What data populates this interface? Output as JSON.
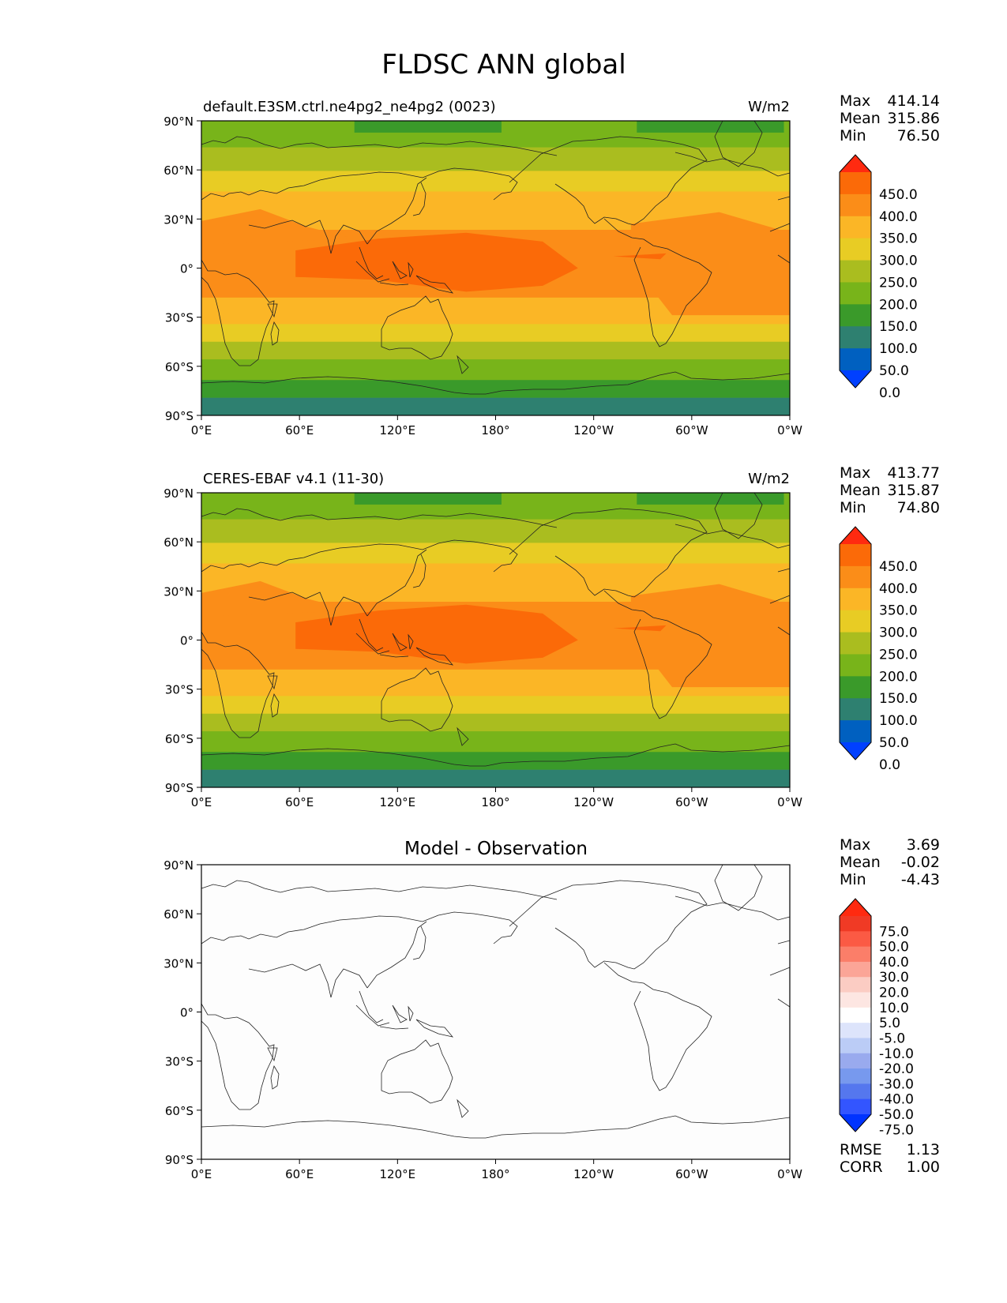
{
  "title": "FLDSC ANN global",
  "panels": [
    {
      "id": "model",
      "left_title": "default.E3SM.ctrl.ne4pg2_ne4pg2 (0023)",
      "center_title": "",
      "right_title": "W/m2",
      "stats": [
        {
          "label": "Max",
          "value": "414.14"
        },
        {
          "label": "Mean",
          "value": "315.86"
        },
        {
          "label": "Min",
          "value": "76.50"
        }
      ],
      "colorbar_labels": [
        "450.0",
        "400.0",
        "350.0",
        "300.0",
        "250.0",
        "200.0",
        "150.0",
        "100.0",
        "50.0",
        "0.0"
      ]
    },
    {
      "id": "obs",
      "left_title": "CERES-EBAF v4.1 (11-30)",
      "center_title": "",
      "right_title": "W/m2",
      "stats": [
        {
          "label": "Max",
          "value": "413.77"
        },
        {
          "label": "Mean",
          "value": "315.87"
        },
        {
          "label": "Min",
          "value": "74.80"
        }
      ],
      "colorbar_labels": [
        "450.0",
        "400.0",
        "350.0",
        "300.0",
        "250.0",
        "200.0",
        "150.0",
        "100.0",
        "50.0",
        "0.0"
      ]
    },
    {
      "id": "diff",
      "left_title": "",
      "center_title": "Model - Observation",
      "right_title": "",
      "stats": [
        {
          "label": "Max",
          "value": "3.69"
        },
        {
          "label": "Mean",
          "value": "-0.02"
        },
        {
          "label": "Min",
          "value": "-4.43"
        }
      ],
      "colorbar_labels": [
        "75.0",
        "50.0",
        "40.0",
        "30.0",
        "20.0",
        "10.0",
        "5.0",
        "-5.0",
        "-10.0",
        "-20.0",
        "-30.0",
        "-40.0",
        "-50.0",
        "-75.0"
      ],
      "extra_stats": [
        {
          "label": "RMSE",
          "value": "1.13"
        },
        {
          "label": "CORR",
          "value": "1.00"
        }
      ]
    }
  ],
  "axes": {
    "lat_labels": [
      "90°N",
      "60°N",
      "30°N",
      "0°",
      "30°S",
      "60°S",
      "90°S"
    ],
    "lon_labels": [
      "0°E",
      "60°E",
      "120°E",
      "180°",
      "120°W",
      "60°W",
      "0°W"
    ]
  },
  "colors": {
    "abs_levels": [
      "#0040ff",
      "#0060c0",
      "#2e8070",
      "#3a9a2a",
      "#78b41a",
      "#aabd1f",
      "#e8cc24",
      "#fbb626",
      "#fb8d18",
      "#fb6a08",
      "#ff2a10"
    ],
    "diff_levels": [
      "#0033ff",
      "#3355ff",
      "#5577ee",
      "#7799ee",
      "#99aaee",
      "#bbccf6",
      "#dde4fb",
      "#ffffff",
      "#fde6e2",
      "#fbccc3",
      "#fba597",
      "#fb7e69",
      "#fb5a44",
      "#f03a25",
      "#ff2a10"
    ],
    "background": "#ffffff"
  }
}
